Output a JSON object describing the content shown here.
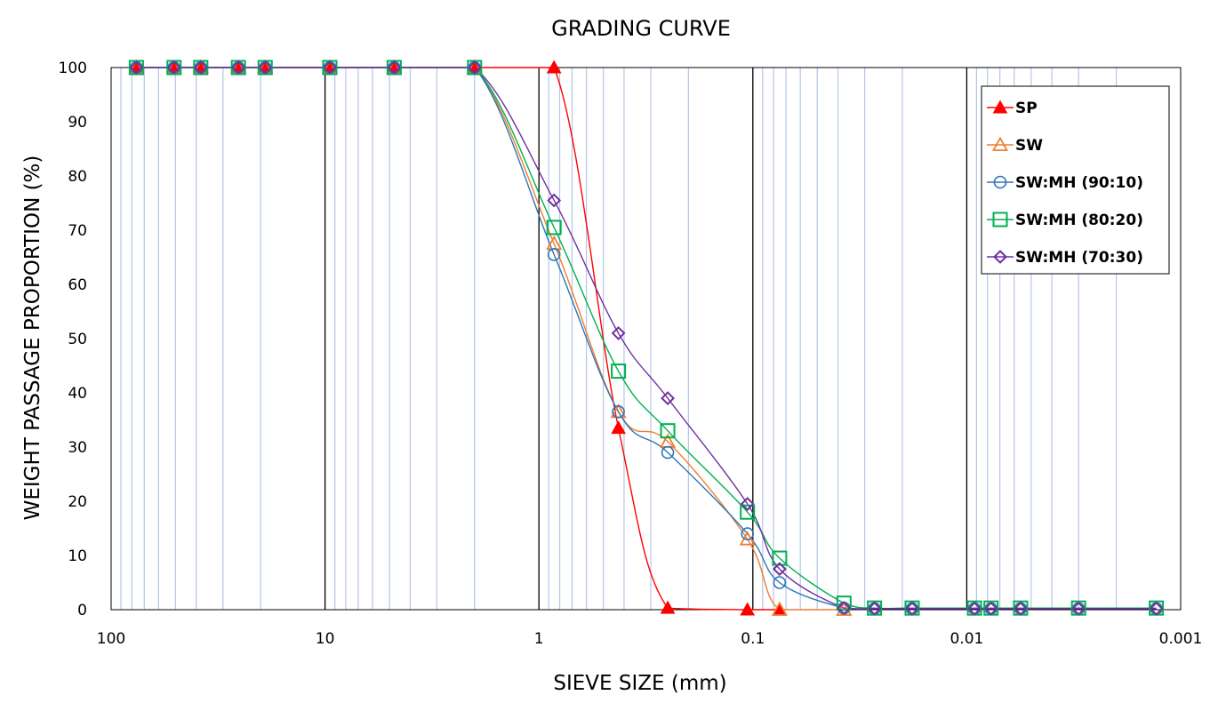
{
  "chart_data": {
    "type": "line",
    "title": "GRADING CURVE",
    "xlabel": "SIEVE SIZE  (mm)",
    "ylabel": "WEIGHT PASSAGE PROPORTION (%)",
    "x_scale": "log",
    "x_reversed": true,
    "xlim": [
      100,
      0.001
    ],
    "ylim": [
      0,
      100
    ],
    "x_ticks": [
      100,
      10,
      1,
      0.1,
      0.01,
      0.001
    ],
    "x_tick_labels": [
      "100",
      "10",
      "1",
      "0.1",
      "0.01",
      "0.001"
    ],
    "y_ticks": [
      0,
      10,
      20,
      30,
      40,
      50,
      60,
      70,
      80,
      90,
      100
    ],
    "y_tick_labels": [
      "0",
      "10",
      "20",
      "30",
      "40",
      "50",
      "60",
      "70",
      "80",
      "90",
      "100"
    ],
    "grid": "major and minor vertical",
    "legend_position": "top-right",
    "series": [
      {
        "name": "SP",
        "color": "#ff0000",
        "marker": "filled-triangle",
        "x": [
          76.2,
          50.8,
          38.1,
          25.4,
          19.05,
          9.5,
          4.75,
          2.0,
          0.85,
          0.425,
          0.25,
          0.106,
          0.075
        ],
        "y": [
          100,
          100,
          100,
          100,
          100,
          100,
          100,
          100,
          100,
          33.5,
          0.3,
          0,
          0
        ]
      },
      {
        "name": "SW",
        "color": "#ed7d31",
        "marker": "open-triangle",
        "x": [
          76.2,
          50.8,
          38.1,
          25.4,
          19.05,
          9.5,
          4.75,
          2.0,
          0.85,
          0.425,
          0.25,
          0.106,
          0.075,
          0.0375
        ],
        "y": [
          100,
          100,
          100,
          100,
          100,
          100,
          100,
          100,
          67.5,
          36.5,
          31,
          13,
          0,
          0
        ]
      },
      {
        "name": "SW:MH  (90:10)",
        "color": "#2e75b6",
        "marker": "open-circle",
        "x": [
          76.2,
          50.8,
          38.1,
          25.4,
          19.05,
          9.5,
          4.75,
          2.0,
          0.85,
          0.425,
          0.25,
          0.106,
          0.075,
          0.0375,
          0.027,
          0.018,
          0.0092,
          0.0077,
          0.0056,
          0.003,
          0.0013
        ],
        "y": [
          100,
          100,
          100,
          100,
          100,
          100,
          100,
          100,
          65.5,
          36.5,
          29,
          14,
          5,
          0.3,
          0.2,
          0.2,
          0.2,
          0.2,
          0.2,
          0.2,
          0.2
        ]
      },
      {
        "name": "SW:MH  (80:20)",
        "color": "#00b050",
        "marker": "open-square",
        "x": [
          76.2,
          50.8,
          38.1,
          25.4,
          19.05,
          9.5,
          4.75,
          2.0,
          0.85,
          0.425,
          0.25,
          0.106,
          0.075,
          0.0375,
          0.027,
          0.018,
          0.0092,
          0.0077,
          0.0056,
          0.003,
          0.0013
        ],
        "y": [
          100,
          100,
          100,
          100,
          100,
          100,
          100,
          100,
          70.5,
          44,
          33,
          18,
          9.5,
          1.2,
          0.3,
          0.3,
          0.3,
          0.3,
          0.3,
          0.3,
          0.3
        ]
      },
      {
        "name": "SW:MH  (70:30)",
        "color": "#7030a0",
        "marker": "open-diamond",
        "x": [
          76.2,
          50.8,
          38.1,
          25.4,
          19.05,
          9.5,
          4.75,
          2.0,
          0.85,
          0.425,
          0.25,
          0.106,
          0.075,
          0.0375,
          0.027,
          0.018,
          0.0092,
          0.0077,
          0.0056,
          0.003,
          0.0013
        ],
        "y": [
          100,
          100,
          100,
          100,
          100,
          100,
          100,
          100,
          75.5,
          51,
          39,
          19.5,
          7.5,
          0.3,
          0.2,
          0.2,
          0.2,
          0.2,
          0.2,
          0.2,
          0.2
        ]
      }
    ]
  }
}
